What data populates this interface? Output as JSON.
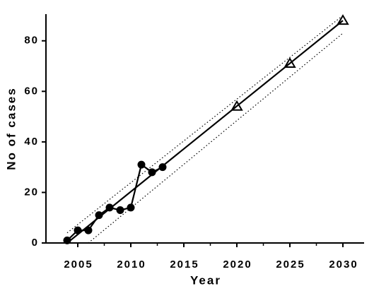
{
  "chart_data": {
    "type": "line",
    "x_label": "Year",
    "y_label": "No of cases",
    "xlim": [
      2002,
      2032
    ],
    "ylim": [
      0,
      90
    ],
    "xticks": [
      2005,
      2010,
      2015,
      2020,
      2025,
      2030
    ],
    "yticks": [
      0,
      20,
      40,
      60,
      80
    ],
    "series": [
      {
        "color": "#000000",
        "marker": "circle",
        "line": "solid",
        "x": [
          2004,
          2005,
          2006,
          2007,
          2008,
          2009,
          2010,
          2011,
          2012,
          2013
        ],
        "values": [
          1,
          5,
          5,
          11,
          14,
          13,
          14,
          31,
          28,
          30
        ]
      },
      {
        "color": "#000000",
        "marker": "triangle",
        "line": "none",
        "x": [
          2020,
          2025,
          2030
        ],
        "values": [
          54,
          71,
          88
        ]
      },
      {
        "color": "#000000",
        "marker": "none",
        "line": "solid",
        "x": [
          2004,
          2030
        ],
        "values": [
          0,
          88
        ]
      },
      {
        "color": "#000000",
        "marker": "none",
        "line": "dotted",
        "x": [
          2004,
          2030
        ],
        "values": [
          4,
          90
        ]
      },
      {
        "color": "#000000",
        "marker": "none",
        "line": "dotted",
        "x": [
          2006,
          2030
        ],
        "values": [
          0,
          83
        ]
      }
    ]
  }
}
